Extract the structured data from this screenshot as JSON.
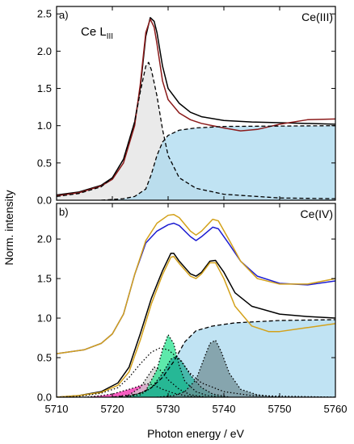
{
  "figure": {
    "y_axis_title": "Norm. intensity",
    "x_axis_title": "Photon energy / eV"
  },
  "chart_data": [
    {
      "type": "line",
      "panel": "a)",
      "title": "Ce L",
      "title_subscript": "III",
      "corner_label": "Ce(III)",
      "xlim": [
        5710,
        5760
      ],
      "ylim": [
        0,
        2.6
      ],
      "x_ticks": [
        5710,
        5720,
        5730,
        5740,
        5750,
        5760
      ],
      "y_ticks": [
        0.0,
        0.5,
        1.0,
        1.5,
        2.0,
        2.5
      ],
      "y_tick_labels": [
        "0.0",
        "0.5",
        "1.0",
        "1.5",
        "2.0",
        "2.5"
      ],
      "grid": false,
      "series": [
        {
          "style": "solid",
          "color": "#000000",
          "points": [
            [
              5710,
              0.07
            ],
            [
              5714,
              0.11
            ],
            [
              5718,
              0.2
            ],
            [
              5720,
              0.3
            ],
            [
              5722,
              0.55
            ],
            [
              5724,
              1.05
            ],
            [
              5725,
              1.5
            ],
            [
              5726,
              2.2
            ],
            [
              5726.8,
              2.45
            ],
            [
              5727.5,
              2.4
            ],
            [
              5728,
              2.25
            ],
            [
              5729,
              1.8
            ],
            [
              5730,
              1.5
            ],
            [
              5732,
              1.3
            ],
            [
              5734,
              1.18
            ],
            [
              5736,
              1.12
            ],
            [
              5740,
              1.07
            ],
            [
              5745,
              1.05
            ],
            [
              5750,
              1.04
            ],
            [
              5760,
              1.02
            ]
          ]
        },
        {
          "style": "solid",
          "color": "#8b1a1a",
          "points": [
            [
              5710,
              0.06
            ],
            [
              5714,
              0.1
            ],
            [
              5718,
              0.19
            ],
            [
              5720,
              0.28
            ],
            [
              5722,
              0.5
            ],
            [
              5724,
              1.0
            ],
            [
              5725,
              1.55
            ],
            [
              5726,
              2.25
            ],
            [
              5726.8,
              2.43
            ],
            [
              5727.5,
              2.32
            ],
            [
              5728,
              2.1
            ],
            [
              5729,
              1.6
            ],
            [
              5730,
              1.35
            ],
            [
              5732,
              1.17
            ],
            [
              5734,
              1.08
            ],
            [
              5736,
              1.03
            ],
            [
              5740,
              0.97
            ],
            [
              5743,
              0.93
            ],
            [
              5746,
              0.95
            ],
            [
              5750,
              1.02
            ],
            [
              5755,
              1.08
            ],
            [
              5760,
              1.09
            ]
          ]
        },
        {
          "style": "dashed",
          "color": "#000000",
          "fill": "#e2e2e2",
          "points": [
            [
              5710,
              0.05
            ],
            [
              5714,
              0.09
            ],
            [
              5718,
              0.18
            ],
            [
              5720,
              0.3
            ],
            [
              5722,
              0.55
            ],
            [
              5724,
              1.05
            ],
            [
              5725,
              1.45
            ],
            [
              5726,
              1.8
            ],
            [
              5726.5,
              1.85
            ],
            [
              5727,
              1.75
            ],
            [
              5728,
              1.4
            ],
            [
              5729,
              0.95
            ],
            [
              5730,
              0.6
            ],
            [
              5732,
              0.3
            ],
            [
              5735,
              0.16
            ],
            [
              5740,
              0.08
            ],
            [
              5750,
              0.03
            ],
            [
              5760,
              0.02
            ]
          ]
        },
        {
          "style": "dashed",
          "color": "#000000",
          "fill": "#a8d8ef",
          "points": [
            [
              5718,
              0.0
            ],
            [
              5722,
              0.02
            ],
            [
              5724,
              0.05
            ],
            [
              5726,
              0.15
            ],
            [
              5727,
              0.35
            ],
            [
              5728,
              0.6
            ],
            [
              5729,
              0.78
            ],
            [
              5730,
              0.87
            ],
            [
              5732,
              0.94
            ],
            [
              5735,
              0.97
            ],
            [
              5740,
              0.99
            ],
            [
              5760,
              1.0
            ]
          ]
        }
      ]
    },
    {
      "type": "line",
      "panel": "b)",
      "corner_label": "Ce(IV)",
      "xlim": [
        5710,
        5760
      ],
      "ylim": [
        0,
        2.45
      ],
      "x_ticks": [
        5710,
        5720,
        5730,
        5740,
        5750,
        5760
      ],
      "x_tick_labels": [
        "5710",
        "5720",
        "5730",
        "5740",
        "5750",
        "5760"
      ],
      "y_ticks": [
        0.0,
        0.5,
        1.0,
        1.5,
        2.0
      ],
      "y_tick_labels": [
        "0.0",
        "0.5",
        "1.0",
        "1.5",
        "2.0"
      ],
      "grid": false,
      "series": [
        {
          "style": "solid",
          "color": "#1c1cd1",
          "points": [
            [
              5710,
              0.55
            ],
            [
              5715,
              0.6
            ],
            [
              5718,
              0.68
            ],
            [
              5720,
              0.8
            ],
            [
              5722,
              1.05
            ],
            [
              5724,
              1.55
            ],
            [
              5726,
              1.95
            ],
            [
              5728,
              2.1
            ],
            [
              5730,
              2.18
            ],
            [
              5731,
              2.2
            ],
            [
              5732,
              2.17
            ],
            [
              5734,
              2.03
            ],
            [
              5735,
              1.98
            ],
            [
              5736,
              2.03
            ],
            [
              5738,
              2.15
            ],
            [
              5739,
              2.13
            ],
            [
              5741,
              1.93
            ],
            [
              5743,
              1.72
            ],
            [
              5746,
              1.53
            ],
            [
              5750,
              1.44
            ],
            [
              5755,
              1.42
            ],
            [
              5760,
              1.47
            ]
          ]
        },
        {
          "style": "solid",
          "color": "#d3a11a",
          "points": [
            [
              5710,
              0.55
            ],
            [
              5715,
              0.6
            ],
            [
              5718,
              0.68
            ],
            [
              5720,
              0.8
            ],
            [
              5722,
              1.05
            ],
            [
              5724,
              1.55
            ],
            [
              5726,
              1.98
            ],
            [
              5728,
              2.2
            ],
            [
              5730,
              2.3
            ],
            [
              5731,
              2.31
            ],
            [
              5732,
              2.27
            ],
            [
              5734,
              2.1
            ],
            [
              5735,
              2.05
            ],
            [
              5736,
              2.1
            ],
            [
              5738,
              2.25
            ],
            [
              5739,
              2.23
            ],
            [
              5741,
              1.98
            ],
            [
              5743,
              1.72
            ],
            [
              5746,
              1.5
            ],
            [
              5750,
              1.43
            ],
            [
              5755,
              1.43
            ],
            [
              5760,
              1.5
            ]
          ]
        },
        {
          "style": "solid",
          "color": "#000000",
          "points": [
            [
              5710,
              0.0
            ],
            [
              5714,
              0.02
            ],
            [
              5718,
              0.07
            ],
            [
              5721,
              0.18
            ],
            [
              5723,
              0.38
            ],
            [
              5725,
              0.8
            ],
            [
              5727,
              1.25
            ],
            [
              5729,
              1.6
            ],
            [
              5730.5,
              1.82
            ],
            [
              5731,
              1.82
            ],
            [
              5732,
              1.72
            ],
            [
              5734,
              1.56
            ],
            [
              5735,
              1.53
            ],
            [
              5736,
              1.58
            ],
            [
              5737.5,
              1.72
            ],
            [
              5738.5,
              1.73
            ],
            [
              5740,
              1.58
            ],
            [
              5742,
              1.32
            ],
            [
              5745,
              1.15
            ],
            [
              5750,
              1.05
            ],
            [
              5755,
              1.02
            ],
            [
              5760,
              1.0
            ]
          ]
        },
        {
          "style": "solid",
          "color": "#d3a11a",
          "points": [
            [
              5710,
              0.0
            ],
            [
              5714,
              0.02
            ],
            [
              5718,
              0.06
            ],
            [
              5721,
              0.15
            ],
            [
              5723,
              0.32
            ],
            [
              5725,
              0.72
            ],
            [
              5727,
              1.18
            ],
            [
              5729,
              1.55
            ],
            [
              5730.5,
              1.77
            ],
            [
              5731,
              1.78
            ],
            [
              5732,
              1.69
            ],
            [
              5734,
              1.53
            ],
            [
              5735,
              1.5
            ],
            [
              5736,
              1.56
            ],
            [
              5737.5,
              1.7
            ],
            [
              5738.5,
              1.7
            ],
            [
              5740,
              1.5
            ],
            [
              5742,
              1.15
            ],
            [
              5745,
              0.9
            ],
            [
              5748,
              0.83
            ],
            [
              5750,
              0.83
            ],
            [
              5755,
              0.88
            ],
            [
              5760,
              0.93
            ]
          ]
        },
        {
          "style": "dotted",
          "color": "#000000",
          "points": [
            [
              5710,
              0.0
            ],
            [
              5714,
              0.01
            ],
            [
              5718,
              0.05
            ],
            [
              5721,
              0.12
            ],
            [
              5723,
              0.25
            ],
            [
              5725,
              0.42
            ],
            [
              5727,
              0.57
            ],
            [
              5728.5,
              0.62
            ],
            [
              5730,
              0.6
            ],
            [
              5732,
              0.48
            ],
            [
              5734,
              0.3
            ],
            [
              5736,
              0.18
            ],
            [
              5740,
              0.07
            ],
            [
              5745,
              0.02
            ],
            [
              5760,
              0.0
            ]
          ]
        },
        {
          "style": "dashed",
          "color": "#000000",
          "fill": "#a8d8ef",
          "points": [
            [
              5720,
              0.0
            ],
            [
              5723,
              0.02
            ],
            [
              5725,
              0.05
            ],
            [
              5727,
              0.12
            ],
            [
              5729,
              0.25
            ],
            [
              5731,
              0.45
            ],
            [
              5733,
              0.7
            ],
            [
              5735,
              0.84
            ],
            [
              5738,
              0.9
            ],
            [
              5742,
              0.94
            ],
            [
              5750,
              0.97
            ],
            [
              5760,
              0.98
            ]
          ]
        },
        {
          "style": "dotted",
          "color": "#000000",
          "fill": "#f21ca8",
          "points": [
            [
              5715,
              0.0
            ],
            [
              5718,
              0.02
            ],
            [
              5720,
              0.04
            ],
            [
              5722,
              0.08
            ],
            [
              5724,
              0.12
            ],
            [
              5725.5,
              0.16
            ],
            [
              5726.5,
              0.17
            ],
            [
              5727.5,
              0.15
            ],
            [
              5729,
              0.1
            ],
            [
              5731,
              0.05
            ],
            [
              5733,
              0.02
            ],
            [
              5736,
              0.0
            ]
          ]
        },
        {
          "style": "dotted",
          "color": "#000000",
          "fill": "#cfcfcf",
          "points": [
            [
              5720,
              0.0
            ],
            [
              5723,
              0.03
            ],
            [
              5725,
              0.12
            ],
            [
              5726.5,
              0.28
            ],
            [
              5727.5,
              0.38
            ],
            [
              5728.5,
              0.35
            ],
            [
              5730,
              0.22
            ],
            [
              5732,
              0.1
            ],
            [
              5734,
              0.03
            ],
            [
              5737,
              0.0
            ]
          ]
        },
        {
          "style": "dotted",
          "color": "#000000",
          "fill": "#1fe08b",
          "points": [
            [
              5722,
              0.0
            ],
            [
              5724,
              0.03
            ],
            [
              5726,
              0.08
            ],
            [
              5728,
              0.35
            ],
            [
              5729,
              0.6
            ],
            [
              5730,
              0.79
            ],
            [
              5731,
              0.68
            ],
            [
              5732,
              0.4
            ],
            [
              5733,
              0.2
            ],
            [
              5735,
              0.07
            ],
            [
              5737,
              0.02
            ],
            [
              5740,
              0.0
            ]
          ]
        },
        {
          "style": "dotted",
          "color": "#000000",
          "fill": "#17a88f",
          "points": [
            [
              5722,
              0.0
            ],
            [
              5725,
              0.03
            ],
            [
              5727,
              0.12
            ],
            [
              5729,
              0.3
            ],
            [
              5730.5,
              0.48
            ],
            [
              5731.5,
              0.52
            ],
            [
              5732.5,
              0.45
            ],
            [
              5734,
              0.28
            ],
            [
              5736,
              0.12
            ],
            [
              5738,
              0.04
            ],
            [
              5741,
              0.0
            ]
          ]
        },
        {
          "style": "dotted",
          "color": "#000000",
          "fill": "#6f8e93",
          "points": [
            [
              5728,
              0.0
            ],
            [
              5731,
              0.02
            ],
            [
              5733,
              0.07
            ],
            [
              5735,
              0.22
            ],
            [
              5736.5,
              0.5
            ],
            [
              5737.5,
              0.68
            ],
            [
              5738.5,
              0.72
            ],
            [
              5739.5,
              0.58
            ],
            [
              5741,
              0.3
            ],
            [
              5743,
              0.1
            ],
            [
              5746,
              0.03
            ],
            [
              5750,
              0.0
            ]
          ]
        }
      ]
    }
  ]
}
